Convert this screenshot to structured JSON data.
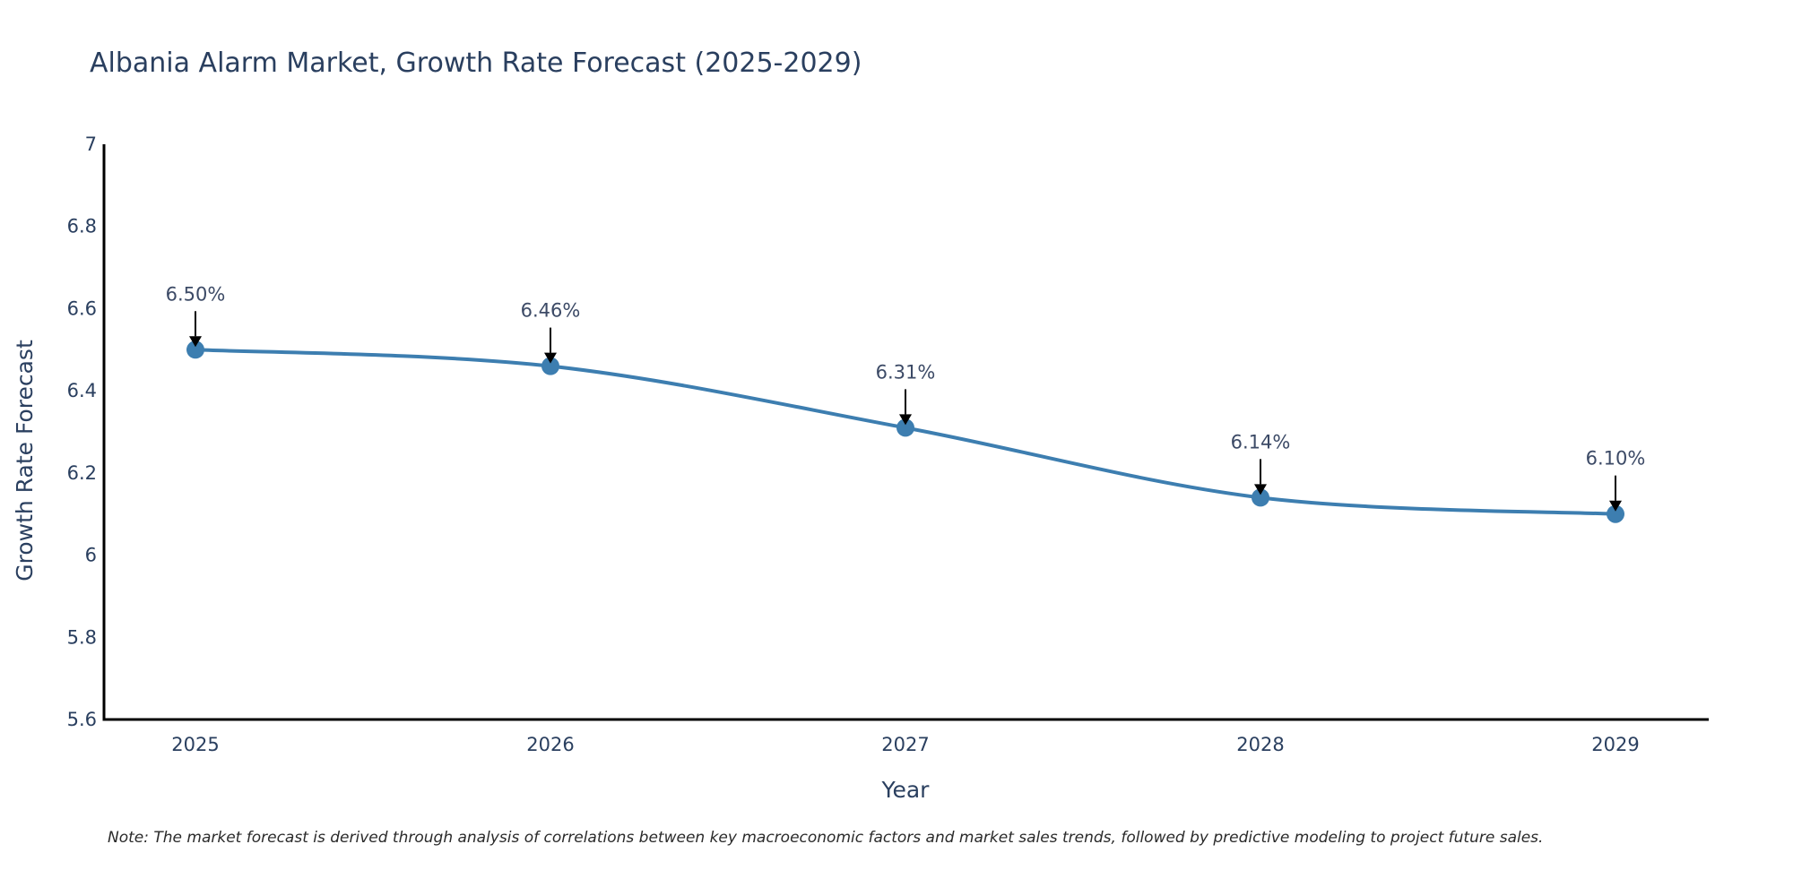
{
  "chart_data": {
    "type": "line",
    "title": "Albania Alarm Market, Growth Rate Forecast (2025-2029)",
    "xlabel": "Year",
    "ylabel": "Growth Rate Forecast",
    "categories": [
      "2025",
      "2026",
      "2027",
      "2028",
      "2029"
    ],
    "values": [
      6.5,
      6.46,
      6.31,
      6.14,
      6.1
    ],
    "data_labels": [
      "6.50%",
      "6.46%",
      "6.31%",
      "6.14%",
      "6.10%"
    ],
    "ylim": [
      5.6,
      7.0
    ],
    "yticks": [
      5.6,
      5.8,
      6.0,
      6.2,
      6.4,
      6.6,
      6.8,
      7.0
    ],
    "ytick_labels": [
      "5.6",
      "5.8",
      "6",
      "6.2",
      "6.4",
      "6.6",
      "6.8",
      "7"
    ],
    "grid": false,
    "line_shape": "spline",
    "note": "Note: The market forecast is derived through analysis of correlations between key macroeconomic factors and market sales trends, followed by predictive modeling to project future sales."
  },
  "colors": {
    "line": "#3d7eb0",
    "marker": "#3d7eb0",
    "axis": "#000000",
    "arrow": "#000000"
  }
}
